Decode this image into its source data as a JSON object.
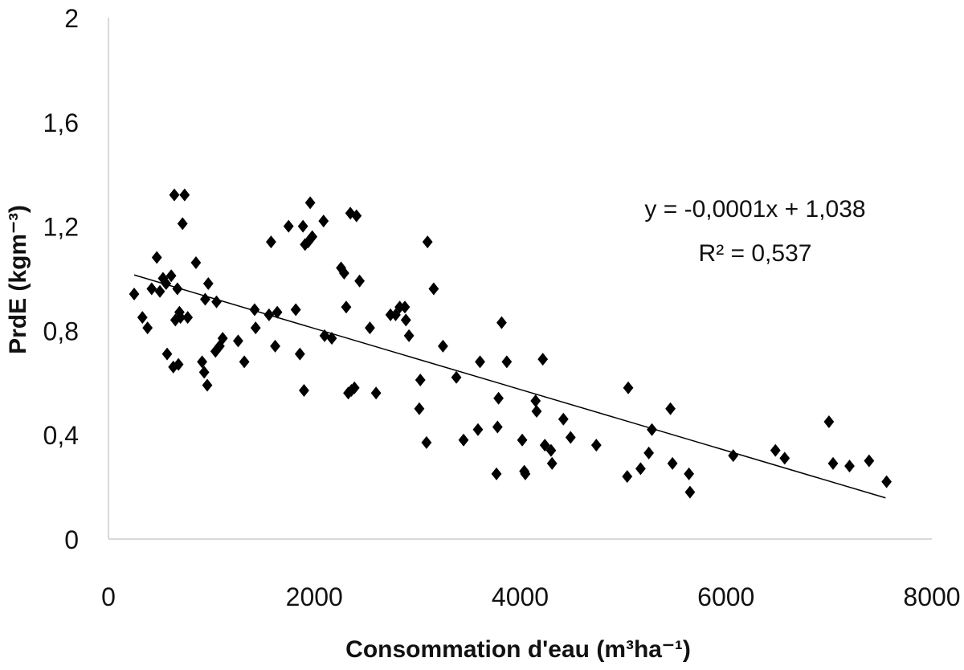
{
  "chart_data": {
    "type": "scatter",
    "xlabel": "Consommation d'eau (m³ha⁻¹)",
    "ylabel": "PrdE (kgm⁻³)",
    "xlim": [
      0,
      8000
    ],
    "ylim": [
      0,
      2
    ],
    "xticks": [
      "0",
      "2000",
      "4000",
      "6000",
      "8000"
    ],
    "yticks": [
      "0",
      "0,4",
      "0,8",
      "1,2",
      "1,6",
      "2"
    ],
    "grid": false,
    "marker": "diamond",
    "marker_color": "#000000",
    "trendline": {
      "equation": "y = -0,0001x + 1,038",
      "r2": "R² = 0,537",
      "x": [
        250,
        7550
      ],
      "y": [
        1.013,
        0.158
      ]
    },
    "series": [
      {
        "points": [
          [
            250,
            0.94
          ],
          [
            330,
            0.85
          ],
          [
            380,
            0.81
          ],
          [
            420,
            0.96
          ],
          [
            470,
            1.08
          ],
          [
            500,
            0.95
          ],
          [
            530,
            1.0
          ],
          [
            560,
            0.98
          ],
          [
            570,
            0.71
          ],
          [
            610,
            1.01
          ],
          [
            630,
            0.66
          ],
          [
            640,
            1.32
          ],
          [
            650,
            0.84
          ],
          [
            670,
            0.96
          ],
          [
            680,
            0.67
          ],
          [
            690,
            0.87
          ],
          [
            700,
            0.85
          ],
          [
            720,
            1.21
          ],
          [
            740,
            1.32
          ],
          [
            770,
            0.85
          ],
          [
            850,
            1.06
          ],
          [
            910,
            0.68
          ],
          [
            930,
            0.64
          ],
          [
            940,
            0.92
          ],
          [
            960,
            0.59
          ],
          [
            970,
            0.98
          ],
          [
            1040,
            0.72
          ],
          [
            1050,
            0.91
          ],
          [
            1080,
            0.74
          ],
          [
            1110,
            0.77
          ],
          [
            1260,
            0.76
          ],
          [
            1320,
            0.68
          ],
          [
            1420,
            0.88
          ],
          [
            1430,
            0.81
          ],
          [
            1560,
            0.86
          ],
          [
            1580,
            1.14
          ],
          [
            1620,
            0.74
          ],
          [
            1640,
            0.87
          ],
          [
            1750,
            1.2
          ],
          [
            1820,
            0.88
          ],
          [
            1860,
            0.71
          ],
          [
            1890,
            1.2
          ],
          [
            1900,
            0.57
          ],
          [
            1910,
            1.13
          ],
          [
            1940,
            1.14
          ],
          [
            1960,
            1.29
          ],
          [
            1980,
            1.16
          ],
          [
            2090,
            1.22
          ],
          [
            2100,
            0.78
          ],
          [
            2170,
            0.77
          ],
          [
            2260,
            1.04
          ],
          [
            2290,
            1.02
          ],
          [
            2310,
            0.89
          ],
          [
            2330,
            0.56
          ],
          [
            2350,
            1.25
          ],
          [
            2360,
            0.57
          ],
          [
            2390,
            0.58
          ],
          [
            2410,
            1.24
          ],
          [
            2440,
            0.99
          ],
          [
            2540,
            0.81
          ],
          [
            2600,
            0.56
          ],
          [
            2740,
            0.86
          ],
          [
            2790,
            0.86
          ],
          [
            2830,
            0.89
          ],
          [
            2880,
            0.89
          ],
          [
            2890,
            0.84
          ],
          [
            2920,
            0.78
          ],
          [
            3020,
            0.5
          ],
          [
            3030,
            0.61
          ],
          [
            3090,
            0.37
          ],
          [
            3100,
            1.14
          ],
          [
            3160,
            0.96
          ],
          [
            3250,
            0.74
          ],
          [
            3380,
            0.62
          ],
          [
            3450,
            0.38
          ],
          [
            3590,
            0.42
          ],
          [
            3610,
            0.68
          ],
          [
            3770,
            0.25
          ],
          [
            3780,
            0.43
          ],
          [
            3790,
            0.54
          ],
          [
            3820,
            0.83
          ],
          [
            3870,
            0.68
          ],
          [
            4020,
            0.38
          ],
          [
            4040,
            0.26
          ],
          [
            4050,
            0.25
          ],
          [
            4150,
            0.53
          ],
          [
            4160,
            0.49
          ],
          [
            4220,
            0.69
          ],
          [
            4240,
            0.36
          ],
          [
            4300,
            0.34
          ],
          [
            4310,
            0.29
          ],
          [
            4420,
            0.46
          ],
          [
            4490,
            0.39
          ],
          [
            4740,
            0.36
          ],
          [
            5040,
            0.24
          ],
          [
            5050,
            0.58
          ],
          [
            5170,
            0.27
          ],
          [
            5250,
            0.33
          ],
          [
            5280,
            0.42
          ],
          [
            5460,
            0.5
          ],
          [
            5480,
            0.29
          ],
          [
            5640,
            0.25
          ],
          [
            5650,
            0.18
          ],
          [
            6070,
            0.32
          ],
          [
            6480,
            0.34
          ],
          [
            6570,
            0.31
          ],
          [
            7000,
            0.45
          ],
          [
            7040,
            0.29
          ],
          [
            7200,
            0.28
          ],
          [
            7390,
            0.3
          ],
          [
            7560,
            0.22
          ]
        ]
      }
    ]
  }
}
